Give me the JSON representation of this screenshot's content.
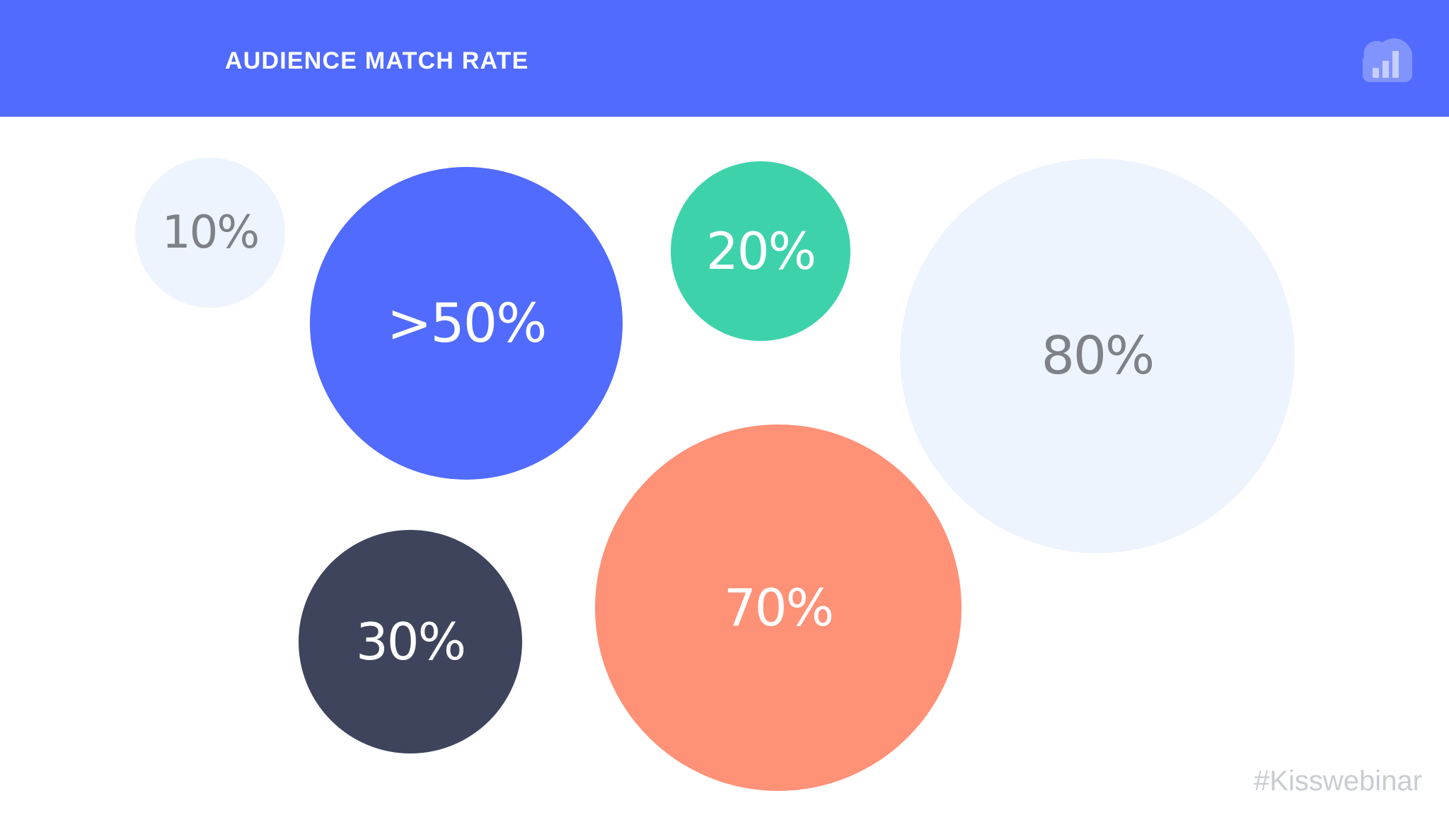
{
  "header": {
    "title": "AUDIENCE MATCH RATE",
    "background": "#516BFE",
    "logo_icon": "cloud-bar-chart-icon"
  },
  "bubbles": [
    {
      "id": "10",
      "label": "10%",
      "fill": "#EEF4FD",
      "text_color": "#7E8187"
    },
    {
      "id": "50",
      "label": ">50%",
      "fill": "#516BFE",
      "text_color": "#FFFFFF"
    },
    {
      "id": "20",
      "label": "20%",
      "fill": "#3ED2AB",
      "text_color": "#FFFFFF"
    },
    {
      "id": "80",
      "label": "80%",
      "fill": "#EEF4FD",
      "text_color": "#7E8187"
    },
    {
      "id": "30",
      "label": "30%",
      "fill": "#3D445C",
      "text_color": "#FFFFFF"
    },
    {
      "id": "70",
      "label": "70%",
      "fill": "#FF9177",
      "text_color": "#FFFFFF"
    }
  ],
  "footer": {
    "hashtag": "#Kisswebinar"
  }
}
